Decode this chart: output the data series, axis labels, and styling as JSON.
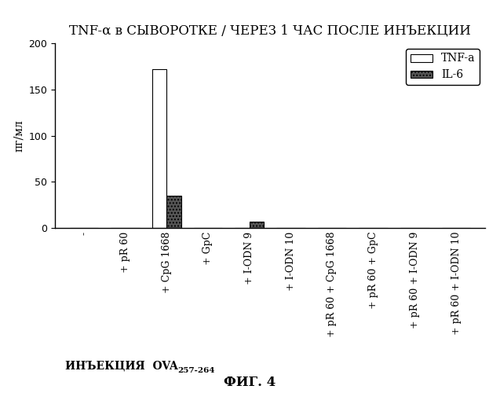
{
  "title": "TNF-α в СЫВОРОТКЕ / ЧЕРЕЗ 1 ЧАС ПОСЛЕ ИНЪЕКЦИИ",
  "ylabel": "пг/мл",
  "xlabel_main": "ИНЪЕКЦИЯ  OVA",
  "xlabel_sub": "257-264",
  "fig_label": "ФИГ. 4",
  "ylim": [
    0,
    200
  ],
  "yticks": [
    0,
    50,
    100,
    150,
    200
  ],
  "categories": [
    "-",
    "+ pR 60",
    "+ CpG 1668",
    "+ GpC",
    "+ I-ODN 9",
    "+ I-ODN 10",
    "+ pR 60 + CpG 1668",
    "+ pR 60 + GpC",
    "+ pR 60 + I-ODN 9",
    "+ pR 60 + I-ODN 10"
  ],
  "TNF_a": [
    0,
    0,
    172,
    0,
    0,
    0,
    0,
    0,
    0,
    0
  ],
  "IL_6": [
    0,
    0,
    35,
    0,
    7,
    0,
    0,
    0,
    0,
    0
  ],
  "bar_width": 0.35,
  "color_TNF": "#ffffff",
  "color_IL6": "#555555",
  "legend_TNF": "TNF-a",
  "legend_IL6": "IL-6",
  "title_fontsize": 12,
  "axis_fontsize": 10,
  "tick_fontsize": 9,
  "legend_fontsize": 10
}
